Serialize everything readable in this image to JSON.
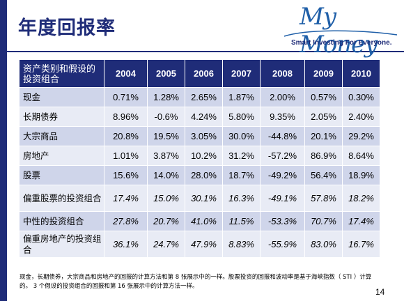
{
  "slide": {
    "title": "年度回报率",
    "page_number": "14",
    "footnote": "现金，长期债券，大宗商品和房地产的回报的计算方法和第 8 张展示中的一样。股票投资的回报和波动率是基于海峡指数（ STI ）计算的。 3 个假设的投资组合的回报和第 16 张展示中的计算方法一样。"
  },
  "logo": {
    "script_text": "My Money",
    "tagline": "Smart Investing For Everyone."
  },
  "table": {
    "header_category": "资产类别和假设的投资组合",
    "years": [
      "2004",
      "2005",
      "2006",
      "2007",
      "2008",
      "2009",
      "2010"
    ],
    "rows": [
      {
        "category": "现金",
        "values": [
          "0.71%",
          "1.28%",
          "2.65%",
          "1.87%",
          "2.00%",
          "0.57%",
          "0.30%"
        ]
      },
      {
        "category": "长期债券",
        "values": [
          "8.96%",
          "-0.6%",
          "4.24%",
          "5.80%",
          "9.35%",
          "2.05%",
          "2.40%"
        ]
      },
      {
        "category": "大宗商品",
        "values": [
          "20.8%",
          "19.5%",
          "3.05%",
          "30.0%",
          "-44.8%",
          "20.1%",
          "29.2%"
        ]
      },
      {
        "category": "房地产",
        "values": [
          "1.01%",
          "3.87%",
          "10.2%",
          "31.2%",
          "-57.2%",
          "86.9%",
          "8.64%"
        ]
      },
      {
        "category": "股票",
        "values": [
          "15.6%",
          "14.0%",
          "28.0%",
          "18.7%",
          "-49.2%",
          "56.4%",
          "18.9%"
        ]
      },
      {
        "category": "偏重股票的投资组合",
        "values": [
          "17.4%",
          "15.0%",
          "30.1%",
          "16.3%",
          "-49.1%",
          "57.8%",
          "18.2%"
        ]
      },
      {
        "category": "中性的投资组合",
        "values": [
          "27.8%",
          "20.7%",
          "41.0%",
          "11.5%",
          "-53.3%",
          "70.7%",
          "17.4%"
        ]
      },
      {
        "category": "偏重房地产的投资组合",
        "values": [
          "36.1%",
          "24.7%",
          "47.9%",
          "8.83%",
          "-55.9%",
          "83.0%",
          "16.7%"
        ]
      }
    ]
  },
  "colors": {
    "navy": "#1f2c78",
    "row_dark": "#cfd5ea",
    "row_light": "#e8ebf5",
    "logo_blue": "#1f5fa8"
  }
}
